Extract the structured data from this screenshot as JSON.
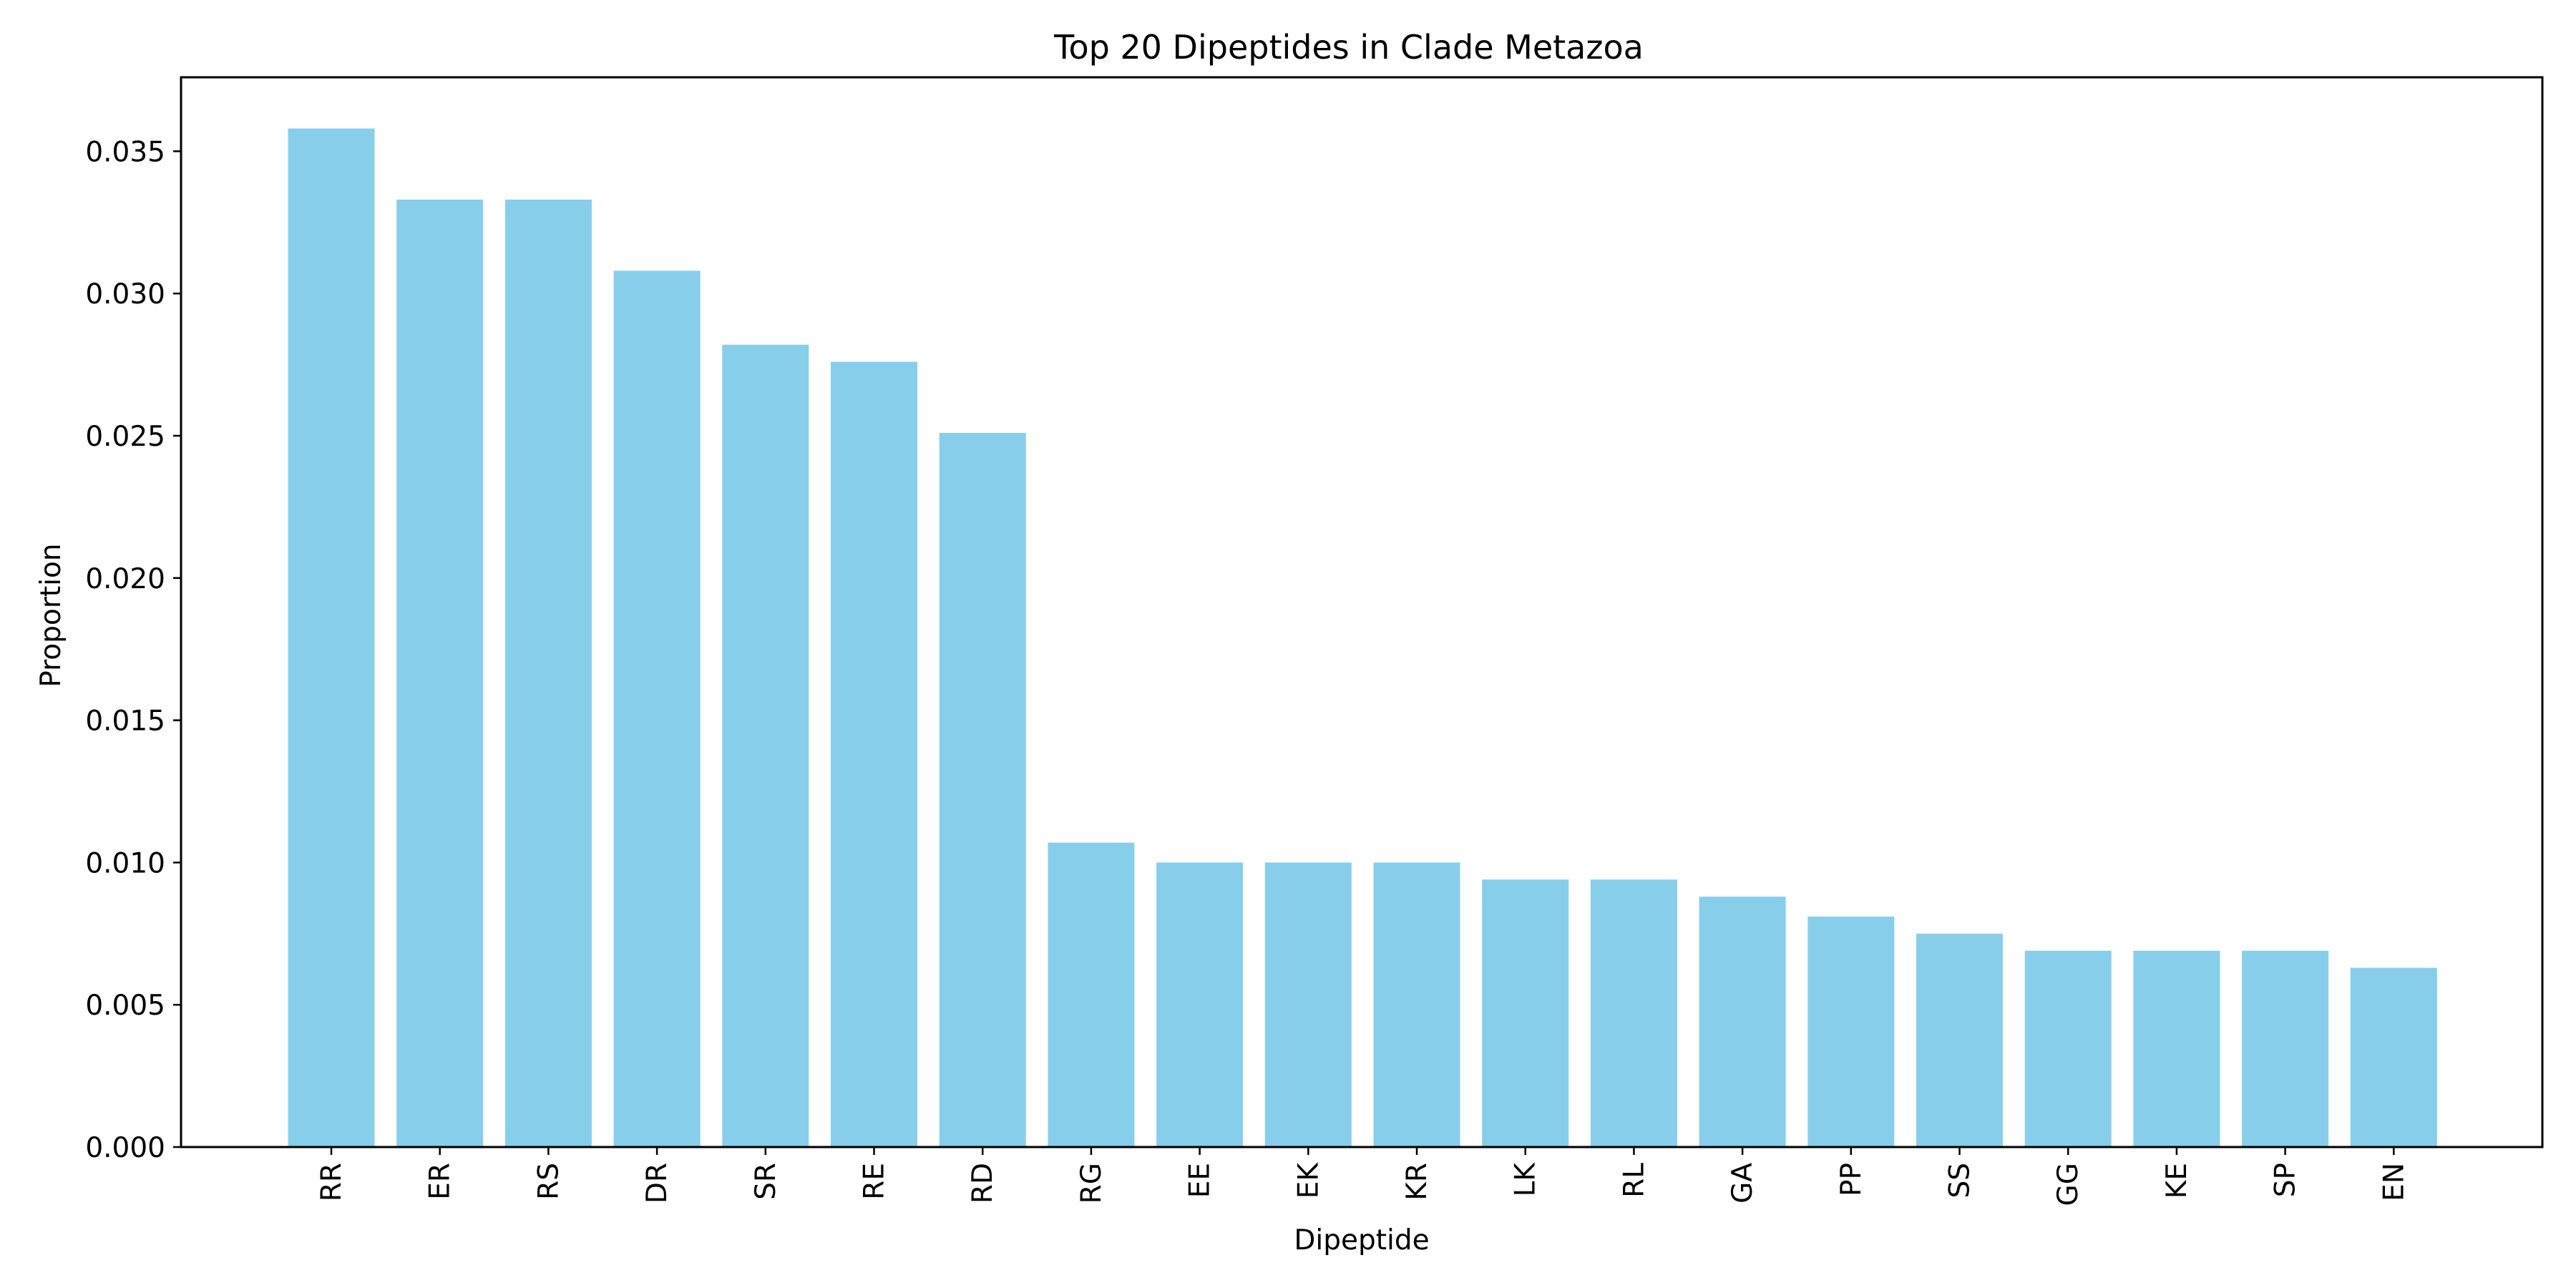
{
  "chart_data": {
    "type": "bar",
    "title": "Top 20 Dipeptides in Clade Metazoa",
    "xlabel": "Dipeptide",
    "ylabel": "Proportion",
    "categories": [
      "RR",
      "ER",
      "RS",
      "DR",
      "SR",
      "RE",
      "RD",
      "RG",
      "EE",
      "EK",
      "KR",
      "LK",
      "RL",
      "GA",
      "PP",
      "SS",
      "GG",
      "KE",
      "SP",
      "EN"
    ],
    "values": [
      0.0358,
      0.0333,
      0.0333,
      0.0308,
      0.0282,
      0.0276,
      0.0251,
      0.0107,
      0.01,
      0.01,
      0.01,
      0.0094,
      0.0094,
      0.0088,
      0.0081,
      0.0075,
      0.0069,
      0.0069,
      0.0069,
      0.0063
    ],
    "ylim": [
      0,
      0.0376
    ],
    "yticks": [
      "0.000",
      "0.005",
      "0.010",
      "0.015",
      "0.020",
      "0.025",
      "0.030",
      "0.035"
    ],
    "bar_color": "#87ceeb",
    "grid": false,
    "legend": "none"
  }
}
